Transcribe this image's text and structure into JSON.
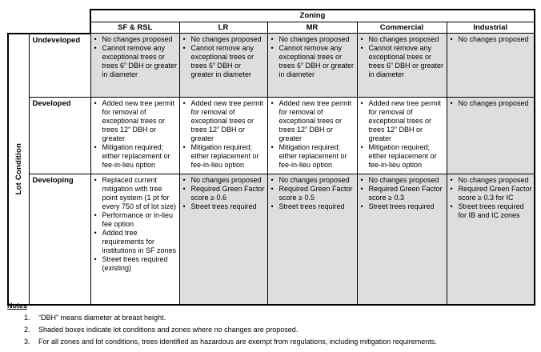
{
  "table": {
    "zoning_header": "Zoning",
    "lot_condition_header": "Lot Condition",
    "columns": [
      "SF & RSL",
      "LR",
      "MR",
      "Commercial",
      "Industrial"
    ],
    "rows": [
      {
        "label": "Undeveloped",
        "cells": [
          {
            "shaded": true,
            "bullets": [
              "No changes proposed",
              "Cannot remove any exceptional trees or trees 6” DBH or greater in diameter"
            ]
          },
          {
            "shaded": true,
            "bullets": [
              "No changes proposed",
              "Cannot remove any exceptional trees or trees 6” DBH or greater in diameter"
            ]
          },
          {
            "shaded": true,
            "bullets": [
              "No changes proposed",
              "Cannot remove any exceptional trees or trees 6” DBH or greater in diameter"
            ]
          },
          {
            "shaded": true,
            "bullets": [
              "No changes proposed",
              "Cannot remove any exceptional trees or trees 6” DBH or greater in diameter"
            ]
          },
          {
            "shaded": true,
            "bullets": [
              "No changes proposed"
            ]
          }
        ]
      },
      {
        "label": "Developed",
        "cells": [
          {
            "shaded": false,
            "bullets": [
              "Added new tree permit for removal of exceptional trees or trees 12” DBH or greater",
              "Mitigation required; either replacement or fee-in-lieu option"
            ]
          },
          {
            "shaded": false,
            "bullets": [
              "Added new tree permit for removal of exceptional trees or trees 12” DBH or greater",
              "Mitigation required; either replacement or fee-in-lieu option"
            ]
          },
          {
            "shaded": false,
            "bullets": [
              "Added new tree permit for removal of exceptional trees or trees 12” DBH or greater",
              "Mitigation required; either replacement or fee-in-lieu option"
            ]
          },
          {
            "shaded": false,
            "bullets": [
              "Added new tree permit for removal of exceptional trees or trees 12” DBH or greater",
              "Mitigation required; either replacement or fee-in-lieu option"
            ]
          },
          {
            "shaded": true,
            "bullets": [
              "No changes proposed"
            ]
          }
        ]
      },
      {
        "label": "Developing",
        "cells": [
          {
            "shaded": false,
            "bullets": [
              "Replaced current mitigation with tree point system (1 pt for every 750 sf of lot size)",
              "Performance or in-lieu fee option",
              "Added tree requirements for institutions in SF zones",
              "Street trees required (existing)"
            ]
          },
          {
            "shaded": true,
            "bullets": [
              "No changes proposed",
              "Required Green Factor score ≥ 0.6",
              "Street trees required"
            ]
          },
          {
            "shaded": true,
            "bullets": [
              "No changes proposed",
              "Required Green Factor score ≥ 0.5",
              "Street trees required"
            ]
          },
          {
            "shaded": true,
            "bullets": [
              "No changes proposed",
              "Required Green Factor score ≥ 0.3",
              "Street trees required"
            ]
          },
          {
            "shaded": true,
            "bullets": [
              "No changes proposed",
              "Required Green Factor score ≥ 0.3 for IC",
              "Street trees required for IB and IC zones"
            ]
          }
        ]
      }
    ]
  },
  "notes": {
    "title": "Notes",
    "items": [
      "“DBH” means diameter at breast height.",
      "Shaded boxes indicate lot conditions and zones where no changes are proposed.",
      "For all zones and lot conditions, trees identified as hazardous are exempt from regulations, including mitigation requirements."
    ]
  },
  "icons": {
    "bullet": "•"
  },
  "colors": {
    "shaded_cell": "#dedede",
    "border": "#000000"
  }
}
